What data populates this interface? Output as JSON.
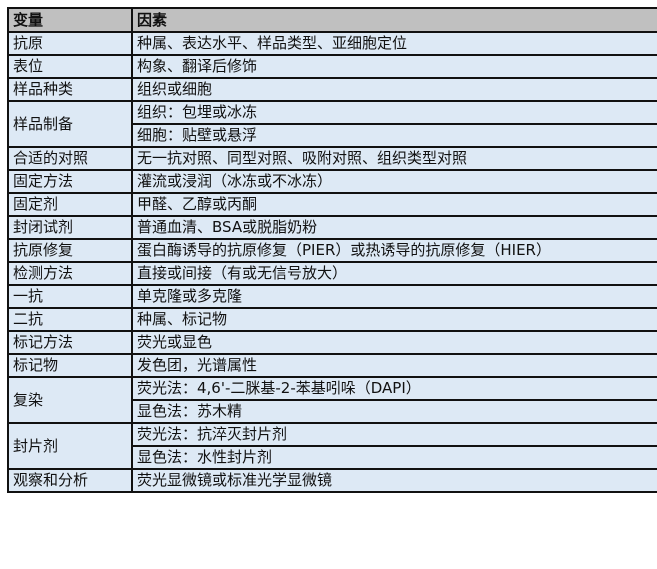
{
  "header": {
    "variable": "变量",
    "factor": "因素"
  },
  "rows": [
    {
      "variable": "抗原",
      "factors": [
        "种属、表达水平、样品类型、亚细胞定位"
      ]
    },
    {
      "variable": "表位",
      "factors": [
        "构象、翻译后修饰"
      ]
    },
    {
      "variable": "样品种类",
      "factors": [
        "组织或细胞"
      ]
    },
    {
      "variable": "样品制备",
      "factors": [
        "组织：包埋或冰冻",
        "细胞：贴壁或悬浮"
      ]
    },
    {
      "variable": "合适的对照",
      "factors": [
        "无一抗对照、同型对照、吸附对照、组织类型对照"
      ]
    },
    {
      "variable": "固定方法",
      "factors": [
        "灌流或浸润（冰冻或不冰冻）"
      ]
    },
    {
      "variable": "固定剂",
      "factors": [
        "甲醛、乙醇或丙酮"
      ]
    },
    {
      "variable": "封闭试剂",
      "factors": [
        "普通血清、BSA或脱脂奶粉"
      ]
    },
    {
      "variable": "抗原修复",
      "factors": [
        "蛋白酶诱导的抗原修复（PIER）或热诱导的抗原修复（HIER）"
      ]
    },
    {
      "variable": "检测方法",
      "factors": [
        "直接或间接（有或无信号放大）"
      ]
    },
    {
      "variable": "一抗",
      "factors": [
        "单克隆或多克隆"
      ]
    },
    {
      "variable": "二抗",
      "factors": [
        "种属、标记物"
      ]
    },
    {
      "variable": "标记方法",
      "factors": [
        "荧光或显色"
      ]
    },
    {
      "variable": "标记物",
      "factors": [
        "发色团，光谱属性"
      ]
    },
    {
      "variable": "复染",
      "factors": [
        "荧光法：4,6'-二脒基-2-苯基吲哚（DAPI）",
        "显色法：苏木精"
      ]
    },
    {
      "variable": "封片剂",
      "factors": [
        "荧光法：抗淬灭封片剂",
        "显色法：水性封片剂"
      ]
    },
    {
      "variable": "观察和分析",
      "factors": [
        "荧光显微镜或标准光学显微镜"
      ]
    }
  ]
}
